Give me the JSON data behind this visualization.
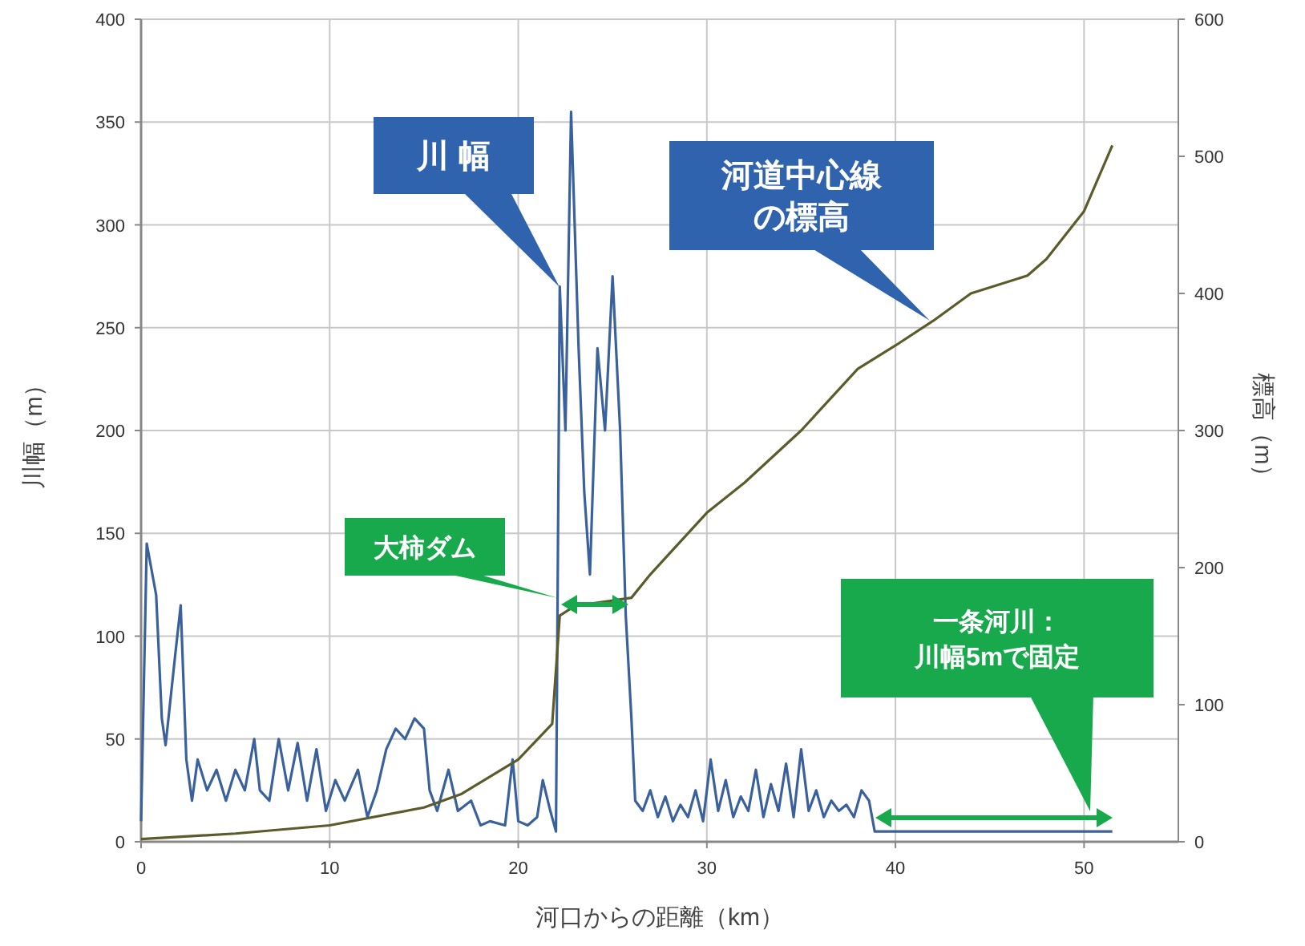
{
  "chart_data": {
    "type": "line",
    "xlabel": "河口からの距離（km）",
    "ylabel": "川幅（m）",
    "y2label": "標高（m）",
    "xlim": [
      0,
      55
    ],
    "xticks": [
      0,
      10,
      20,
      30,
      40,
      50
    ],
    "ylim": [
      0,
      400
    ],
    "yticks": [
      0,
      50,
      100,
      150,
      200,
      250,
      300,
      350,
      400
    ],
    "y2lim": [
      0,
      600
    ],
    "y2ticks": [
      0,
      100,
      200,
      300,
      400,
      500,
      600
    ],
    "grid": true,
    "series": [
      {
        "color": "#3b619c",
        "x": [
          0,
          0.3,
          0.8,
          1.1,
          1.3,
          1.8,
          2.1,
          2.4,
          2.7,
          3,
          3.5,
          4,
          4.5,
          5,
          5.5,
          6,
          6.3,
          6.8,
          7.3,
          7.8,
          8.3,
          8.8,
          9.3,
          9.8,
          10.3,
          10.8,
          11.5,
          12,
          12.5,
          13,
          13.5,
          14,
          14.5,
          15,
          15.3,
          15.7,
          16.3,
          16.8,
          17.5,
          18,
          18.5,
          19.3,
          19.7,
          20,
          20.5,
          21,
          21.3,
          21.7,
          22,
          22.2,
          22.5,
          22.8,
          23.2,
          23.5,
          23.8,
          24.2,
          24.6,
          25,
          25.4,
          25.7,
          26,
          26.2,
          26.6,
          27,
          27.4,
          27.8,
          28.2,
          28.6,
          29,
          29.4,
          29.8,
          30.2,
          30.6,
          31,
          31.4,
          31.8,
          32.2,
          32.6,
          33,
          33.4,
          33.8,
          34.2,
          34.6,
          35,
          35.4,
          35.8,
          36.2,
          36.6,
          37,
          37.4,
          37.8,
          38.2,
          38.6,
          38.9,
          51.5
        ],
        "values": [
          10,
          145,
          120,
          60,
          47,
          90,
          115,
          40,
          20,
          40,
          25,
          35,
          20,
          35,
          25,
          50,
          25,
          20,
          50,
          25,
          48,
          20,
          45,
          15,
          30,
          20,
          35,
          12,
          25,
          45,
          55,
          50,
          60,
          55,
          25,
          15,
          35,
          15,
          20,
          8,
          10,
          8,
          40,
          10,
          8,
          12,
          30,
          15,
          5,
          270,
          200,
          355,
          240,
          170,
          130,
          240,
          200,
          275,
          200,
          110,
          60,
          20,
          15,
          25,
          12,
          22,
          10,
          18,
          12,
          25,
          10,
          40,
          15,
          30,
          12,
          22,
          15,
          35,
          12,
          28,
          15,
          38,
          12,
          45,
          15,
          25,
          12,
          20,
          15,
          18,
          12,
          25,
          20,
          5,
          5
        ]
      },
      {
        "color": "#5b5b2c",
        "axis": "y2",
        "x": [
          0,
          5,
          10,
          15,
          17,
          20,
          21.8,
          22.2,
          23,
          26,
          27,
          28,
          30,
          32,
          35,
          38,
          40,
          42,
          44,
          47,
          48,
          50,
          51.5
        ],
        "values": [
          2,
          6,
          12,
          25,
          35,
          60,
          86,
          165,
          172,
          178,
          195,
          210,
          240,
          262,
          300,
          345,
          362,
          380,
          400,
          413,
          425,
          460,
          508
        ]
      }
    ],
    "annotations": [
      "川 幅",
      "河道中心線の標高",
      "大柿ダム",
      "一条河川：川幅5mで固定"
    ]
  }
}
